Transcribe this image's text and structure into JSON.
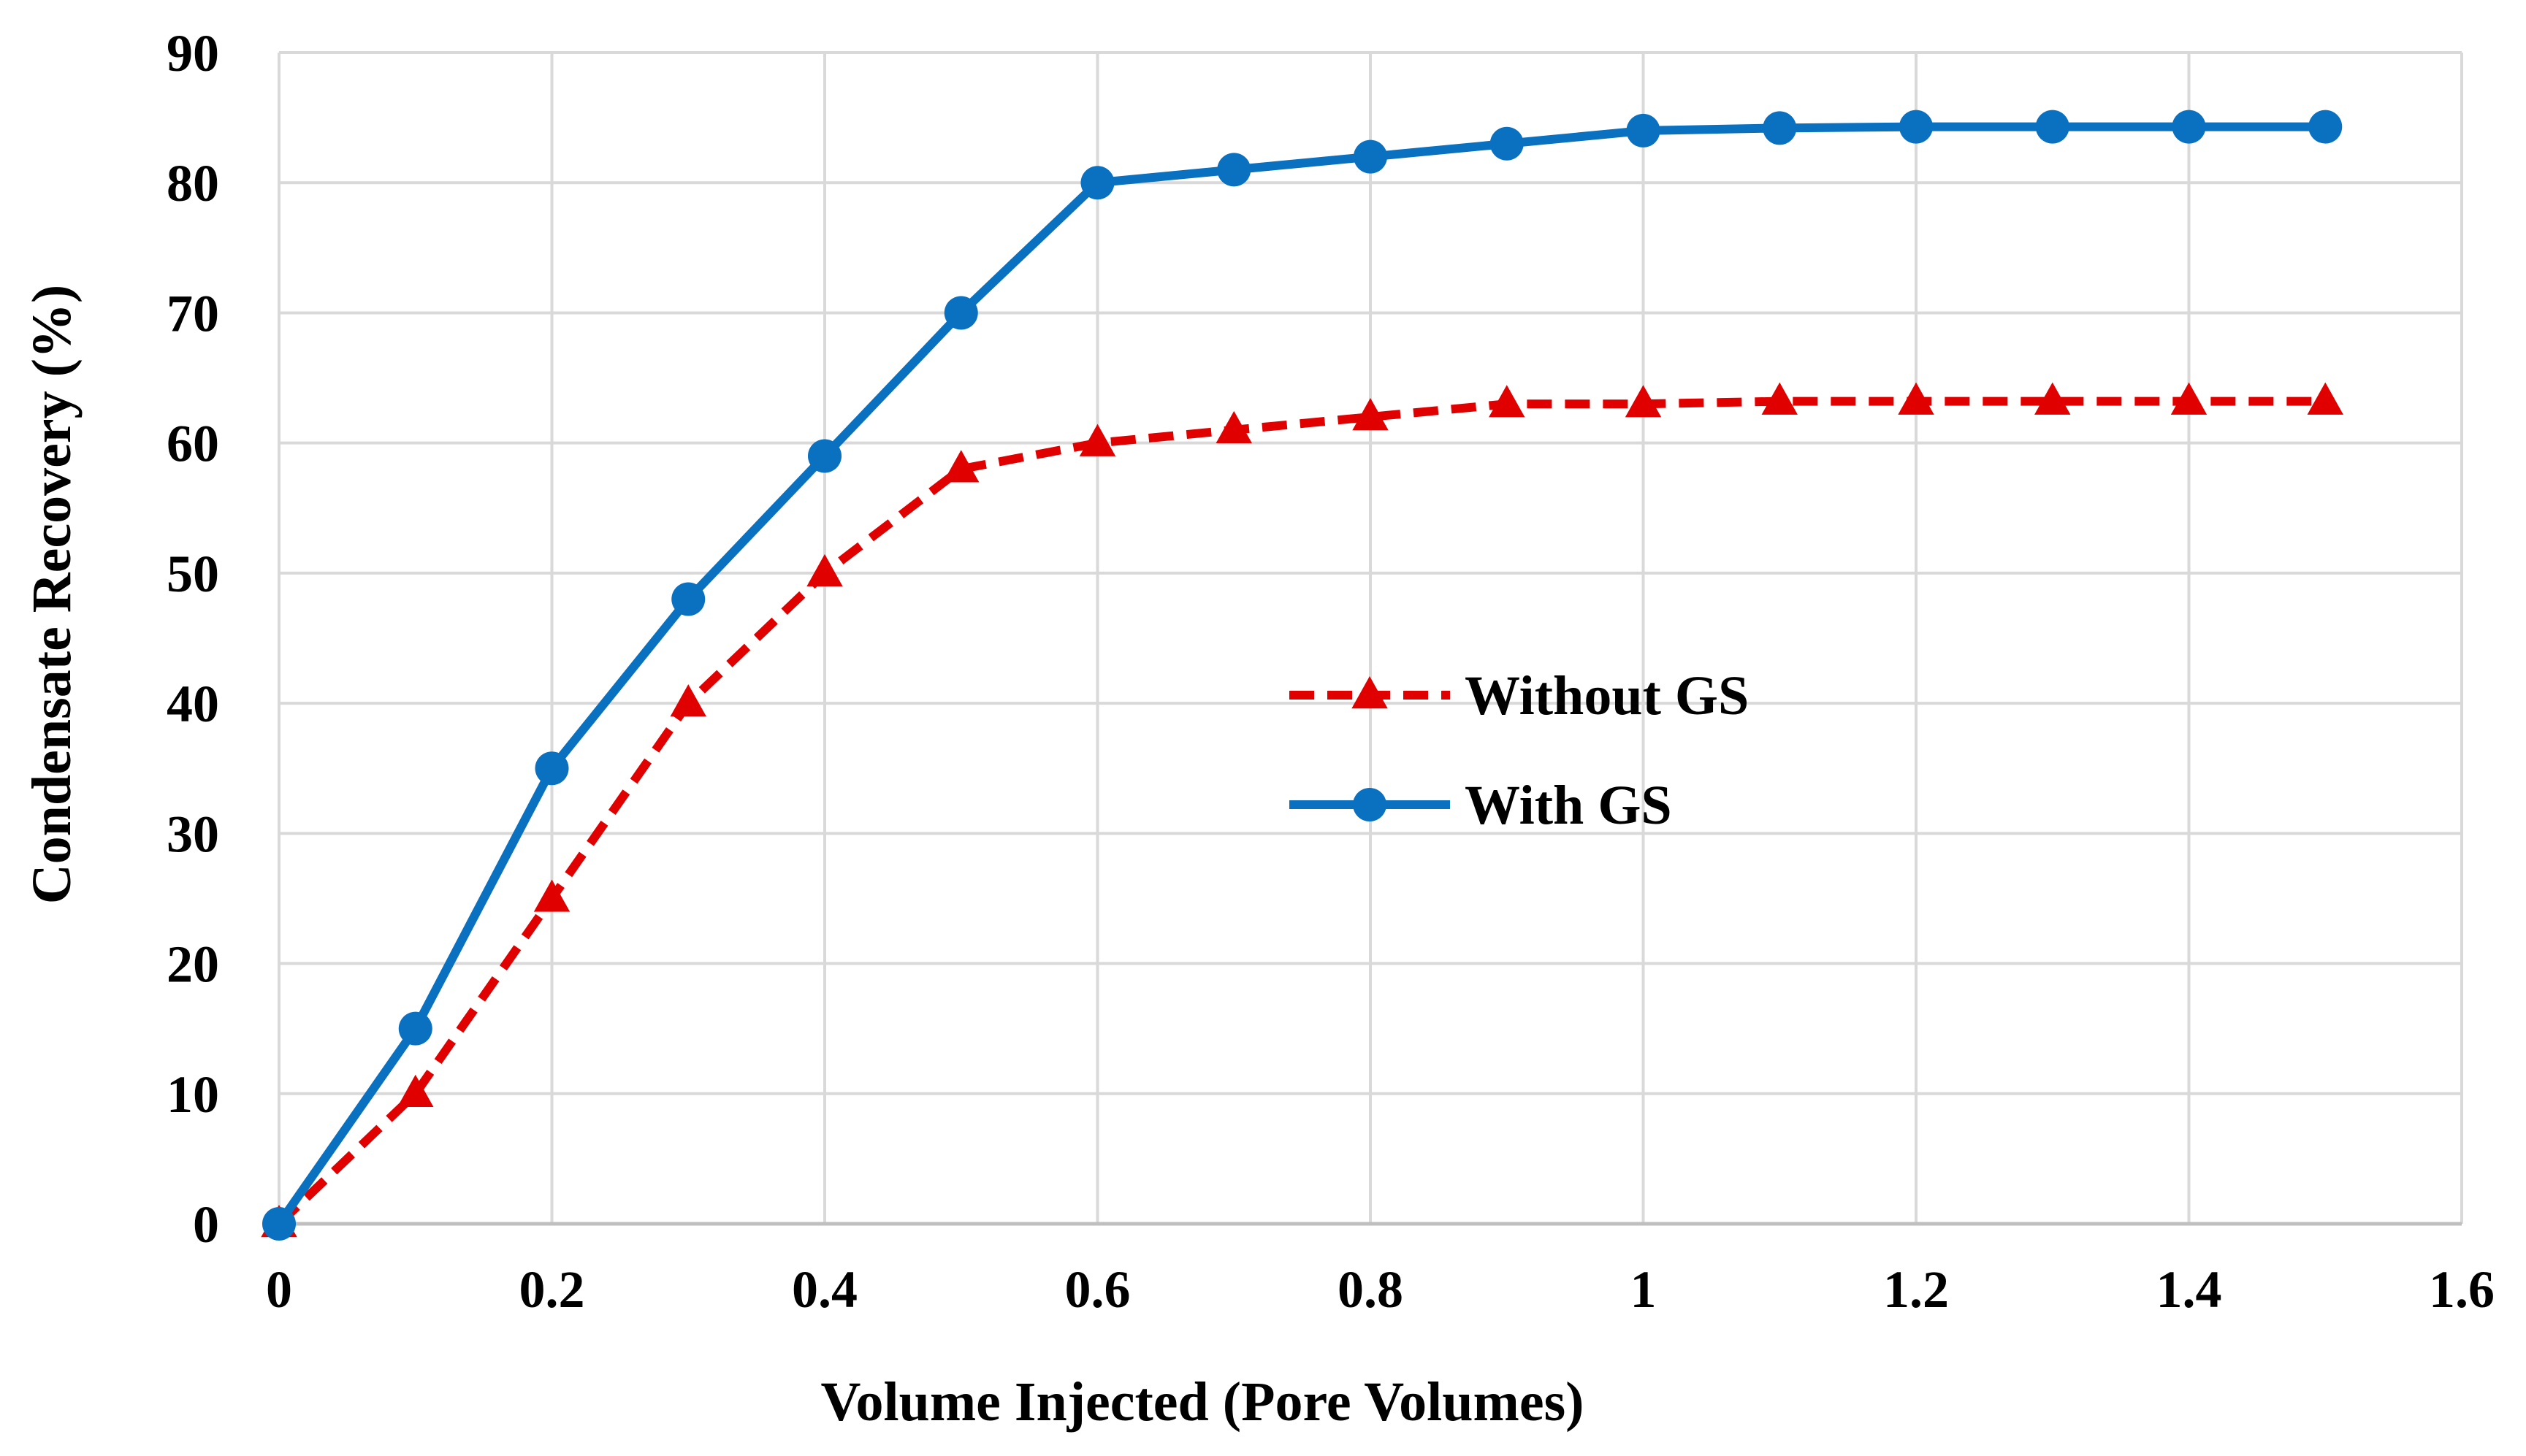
{
  "chart_data": {
    "type": "line",
    "title": "",
    "xlabel": "Volume Injected (Pore Volumes)",
    "ylabel": "Condensate Recovery (%)",
    "xlim": [
      0,
      1.6
    ],
    "ylim": [
      0,
      90
    ],
    "xticks": [
      "0",
      "0.2",
      "0.4",
      "0.6",
      "0.8",
      "1",
      "1.2",
      "1.4",
      "1.6"
    ],
    "yticks": [
      "0",
      "10",
      "20",
      "30",
      "40",
      "50",
      "60",
      "70",
      "80",
      "90"
    ],
    "grid": true,
    "legend_position": "center-right",
    "x": [
      0,
      0.1,
      0.2,
      0.3,
      0.4,
      0.5,
      0.6,
      0.7,
      0.8,
      0.9,
      1.0,
      1.1,
      1.2,
      1.3,
      1.4,
      1.5
    ],
    "series": [
      {
        "name": "Without GS",
        "color": "#e00000",
        "line_style": "dashed",
        "marker": "triangle",
        "values": [
          0,
          10,
          25,
          40,
          50,
          58,
          60,
          61,
          62,
          63,
          63,
          63.2,
          63.2,
          63.2,
          63.2,
          63.2
        ]
      },
      {
        "name": "With GS",
        "color": "#0a70c0",
        "line_style": "solid",
        "marker": "circle",
        "values": [
          0,
          15,
          35,
          48,
          59,
          70,
          80,
          81,
          82,
          83,
          84,
          84.2,
          84.3,
          84.3,
          84.3,
          84.3
        ]
      }
    ]
  },
  "colors": {
    "grid": "#d9d9d9",
    "axis": "#bfbfbf"
  }
}
